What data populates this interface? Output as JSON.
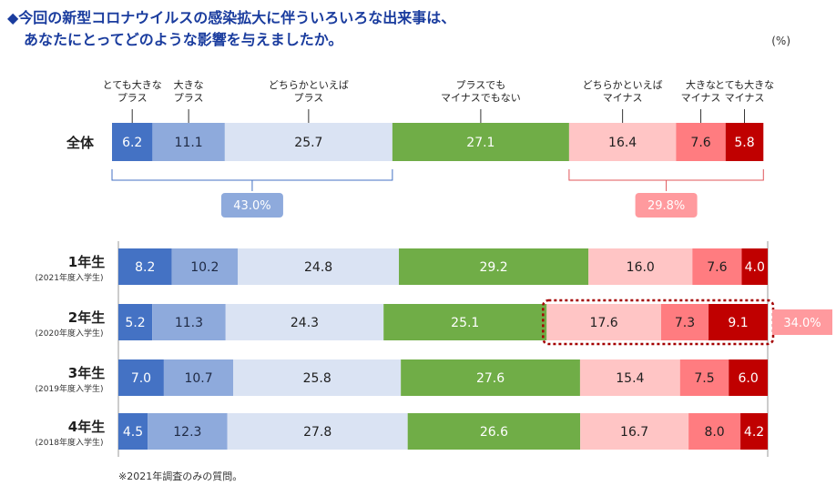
{
  "title": {
    "line1": "◆今回の新型コロナウイルスの感染拡大に伴ういろいろな出来事は、",
    "line2": "あなたにとってどのような影響を与えましたか。"
  },
  "unit": "(%)",
  "note": "※2021年調査のみの質問。",
  "chart_data": {
    "type": "bar",
    "orientation": "horizontal",
    "stacked": true,
    "percent_total": 100,
    "legend": [
      [
        "とても大きな",
        "プラス"
      ],
      [
        "大きな",
        "プラス"
      ],
      [
        "どちらかといえば",
        "プラス"
      ],
      [
        "プラスでも",
        "マイナスでもない"
      ],
      [
        "どちらかといえば",
        "マイナス"
      ],
      [
        "大きな",
        "マイナス"
      ],
      [
        "とても大きな",
        "マイナス"
      ]
    ],
    "colors": [
      "#4472c4",
      "#8eaadc",
      "#dae3f3",
      "#70ad47",
      "#ffc5c5",
      "#ff7c80",
      "#c00000"
    ],
    "label_colors": [
      "#ffffff",
      "#1f2a44",
      "#1f1f1f",
      "#ffffff",
      "#1f1f1f",
      "#1f1f1f",
      "#ffffff"
    ],
    "overall": {
      "label": "全体",
      "values": [
        6.2,
        11.1,
        25.7,
        27.1,
        16.4,
        7.6,
        5.8
      ],
      "plus_total": "43.0%",
      "minus_total": "29.8%"
    },
    "rows": [
      {
        "label": "1年生",
        "sub": "(2021年度入学生)",
        "values": [
          8.2,
          10.2,
          24.8,
          29.2,
          16.0,
          7.6,
          4.0
        ]
      },
      {
        "label": "2年生",
        "sub": "(2020年度入学生)",
        "values": [
          5.2,
          11.3,
          24.3,
          25.1,
          17.6,
          7.3,
          9.1
        ],
        "highlight": "34.0%"
      },
      {
        "label": "3年生",
        "sub": "(2019年度入学生)",
        "values": [
          7.0,
          10.7,
          25.8,
          27.6,
          15.4,
          7.5,
          6.0
        ]
      },
      {
        "label": "4年生",
        "sub": "(2018年度入学生)",
        "values": [
          4.5,
          12.3,
          27.8,
          26.6,
          16.7,
          8.0,
          4.2
        ]
      }
    ]
  }
}
